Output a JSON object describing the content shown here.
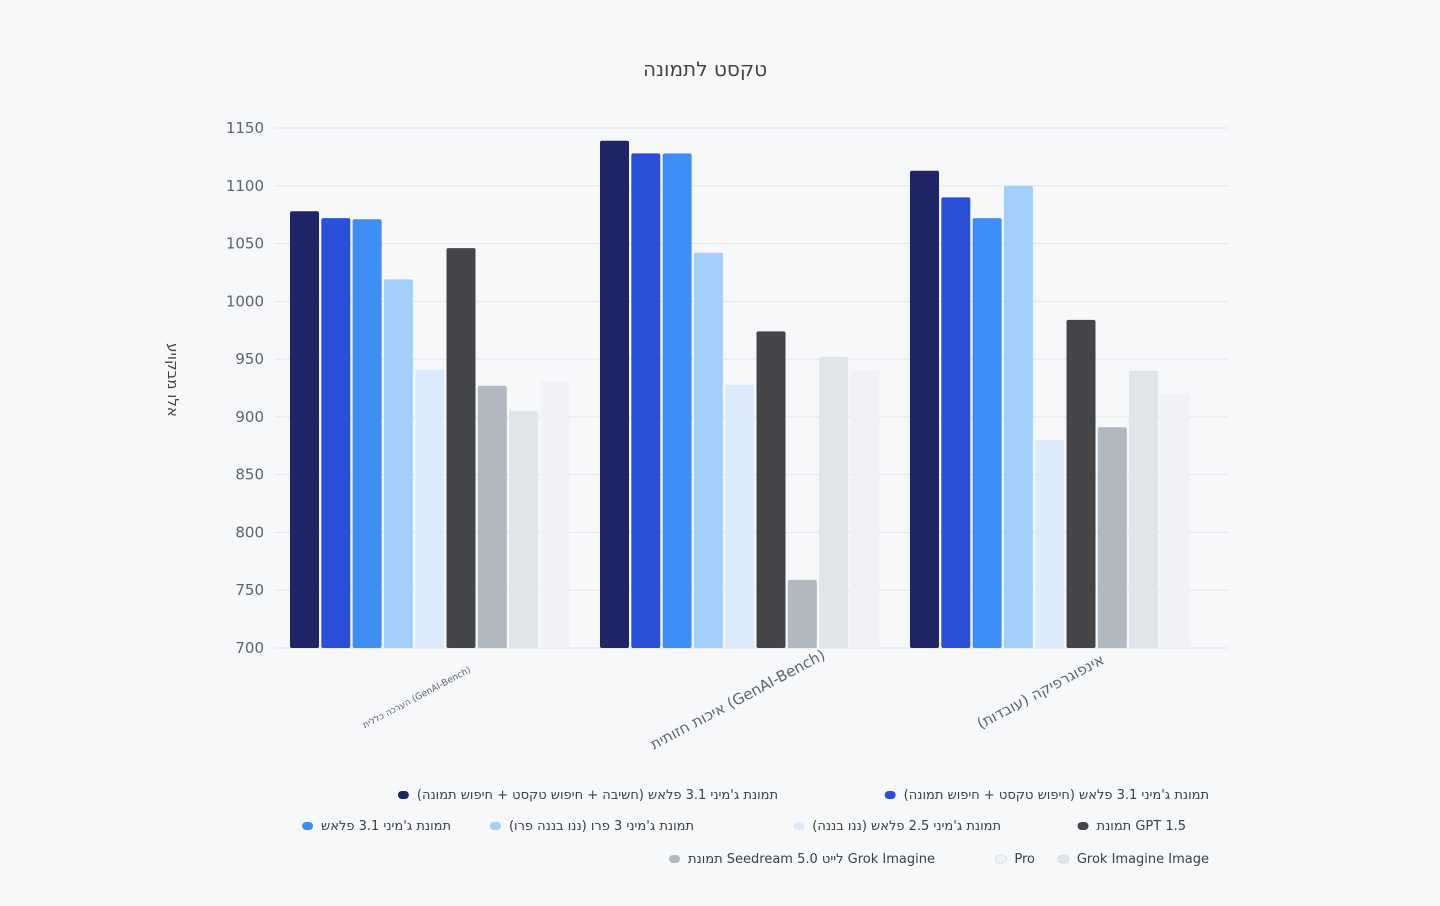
{
  "chart_data": {
    "type": "bar",
    "title": "טקסט לתמונה",
    "ylabel": "אלו מבקויע",
    "ylim": [
      700,
      1150
    ],
    "yticks": [
      700,
      750,
      800,
      850,
      900,
      950,
      1000,
      1050,
      1100,
      1150
    ],
    "grid": true,
    "legend_position": "bottom",
    "categories": [
      "הערכה כללית (GenAI-Bench)",
      "איכות חזותית (GenAI-Bench)",
      "אינפוגרפיקה (עובדות)"
    ],
    "series": [
      {
        "name": "תמונת ג'מיני 3.1 פלאש (חשיבה + חיפוש טקסט + חיפוש תמונה)",
        "color": "#1f2566",
        "values": [
          1078,
          1139,
          1113
        ]
      },
      {
        "name": "תמונת ג'מיני 3.1 פלאש (חיפוש טקסט + חיפוש תמונה)",
        "color": "#2b50d8",
        "values": [
          1072,
          1128,
          1090
        ]
      },
      {
        "name": "תמונת ג'מיני 3.1 פלאש",
        "color": "#3d8ff5",
        "values": [
          1071,
          1128,
          1072
        ]
      },
      {
        "name": "תמונת ג'מיני 3 פרו (ננו בננה פרו)",
        "color": "#a3cffc",
        "values": [
          1019,
          1042,
          1100
        ]
      },
      {
        "name": "תמונת ג'מיני 2.5 פלאש (ננו בננה)",
        "color": "#dcebfb",
        "values": [
          941,
          928,
          880
        ]
      },
      {
        "name": "תמונת GPT 1.5",
        "color": "#444548",
        "values": [
          1046,
          974,
          984
        ]
      },
      {
        "name": "תמונת Seedream 5.0 לייט Grok Imagine",
        "color": "#b1b8c0",
        "values": [
          927,
          759,
          891
        ]
      },
      {
        "name": "Grok Imagine Image",
        "color": "#e1e4e9",
        "values": [
          905,
          952,
          940
        ]
      },
      {
        "name": "Pro",
        "color": "#f1f2f5",
        "values": [
          931,
          940,
          920
        ]
      }
    ]
  },
  "legend_rows": [
    [
      0,
      1
    ],
    [
      2,
      3,
      4,
      5
    ],
    [
      6,
      8,
      7
    ]
  ]
}
